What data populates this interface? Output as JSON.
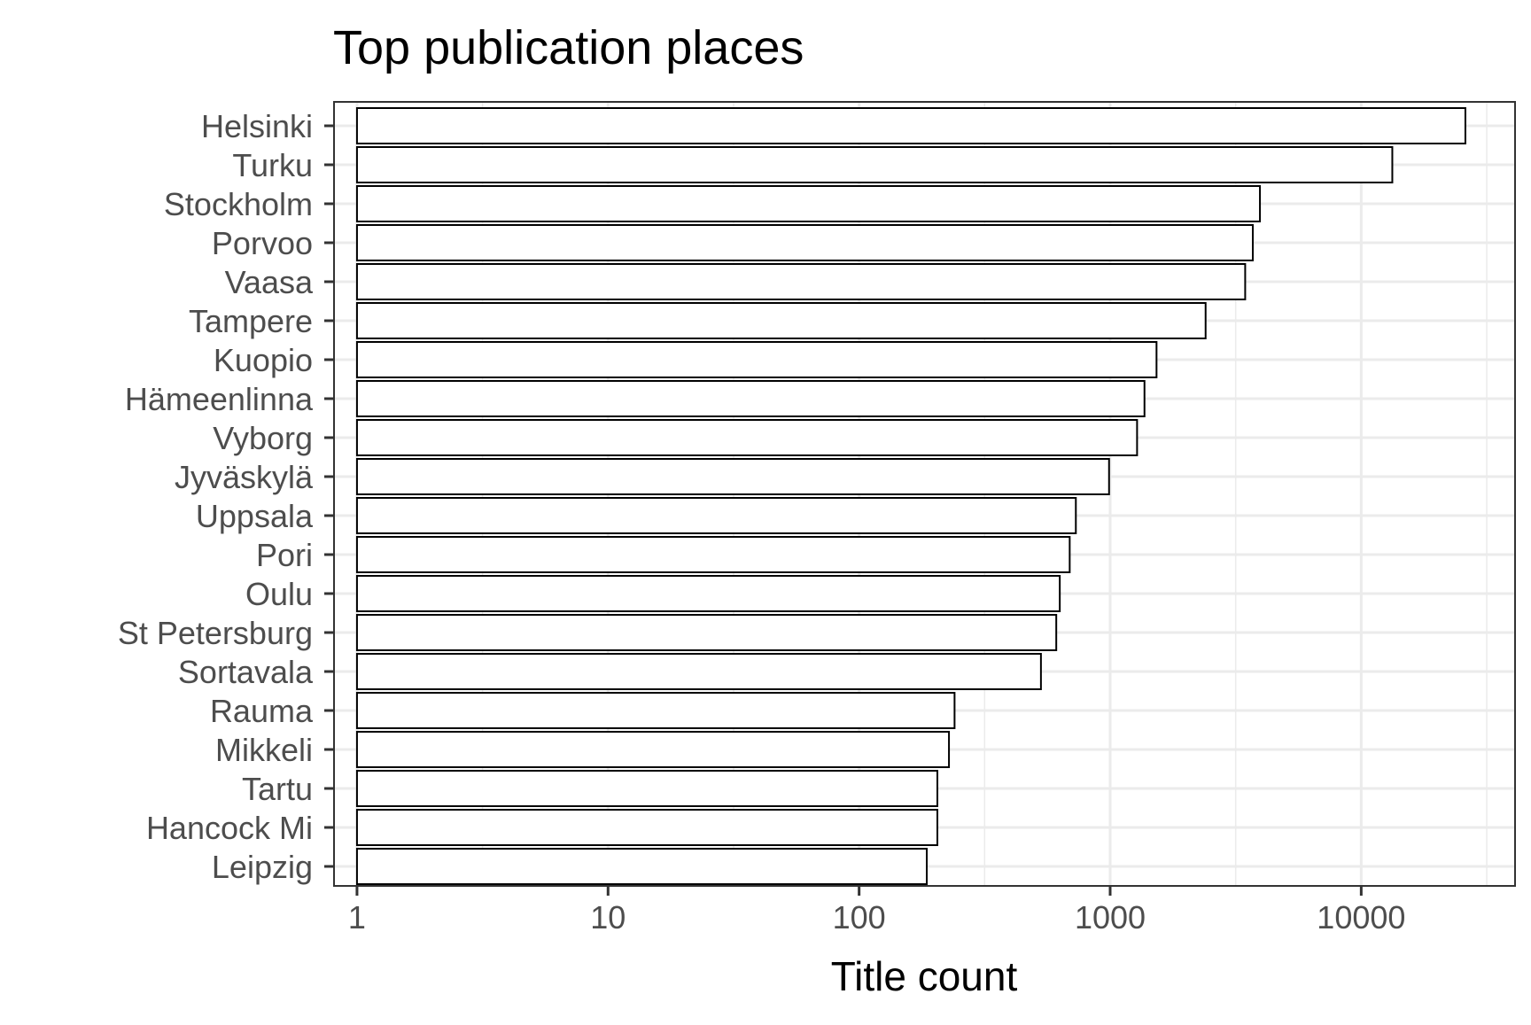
{
  "chart_data": {
    "type": "bar",
    "orientation": "horizontal",
    "title": "Top publication places",
    "xlabel": "Title count",
    "ylabel": "",
    "x_scale": "log10",
    "xlim": [
      0.81,
      41000
    ],
    "x_ticks": [
      1,
      10,
      100,
      1000,
      10000
    ],
    "x_tick_labels": [
      "1",
      "10",
      "100",
      "1000",
      "10000"
    ],
    "categories": [
      "Helsinki",
      "Turku",
      "Stockholm",
      "Porvoo",
      "Vaasa",
      "Tampere",
      "Kuopio",
      "Hämeenlinna",
      "Vyborg",
      "Jyväskylä",
      "Uppsala",
      "Pori",
      "Oulu",
      "St Petersburg",
      "Sortavala",
      "Rauma",
      "Mikkeli",
      "Tartu",
      "Hancock Mi",
      "Leipzig"
    ],
    "values": [
      26000,
      13300,
      3950,
      3700,
      3450,
      2400,
      1530,
      1370,
      1280,
      990,
      730,
      690,
      630,
      610,
      530,
      240,
      228,
      205,
      205,
      186
    ],
    "grid": true,
    "legend": "none",
    "bar_fill": "#ffffff",
    "bar_stroke": "#000000",
    "panel_border": "#333333",
    "grid_color": "#ebebeb"
  }
}
